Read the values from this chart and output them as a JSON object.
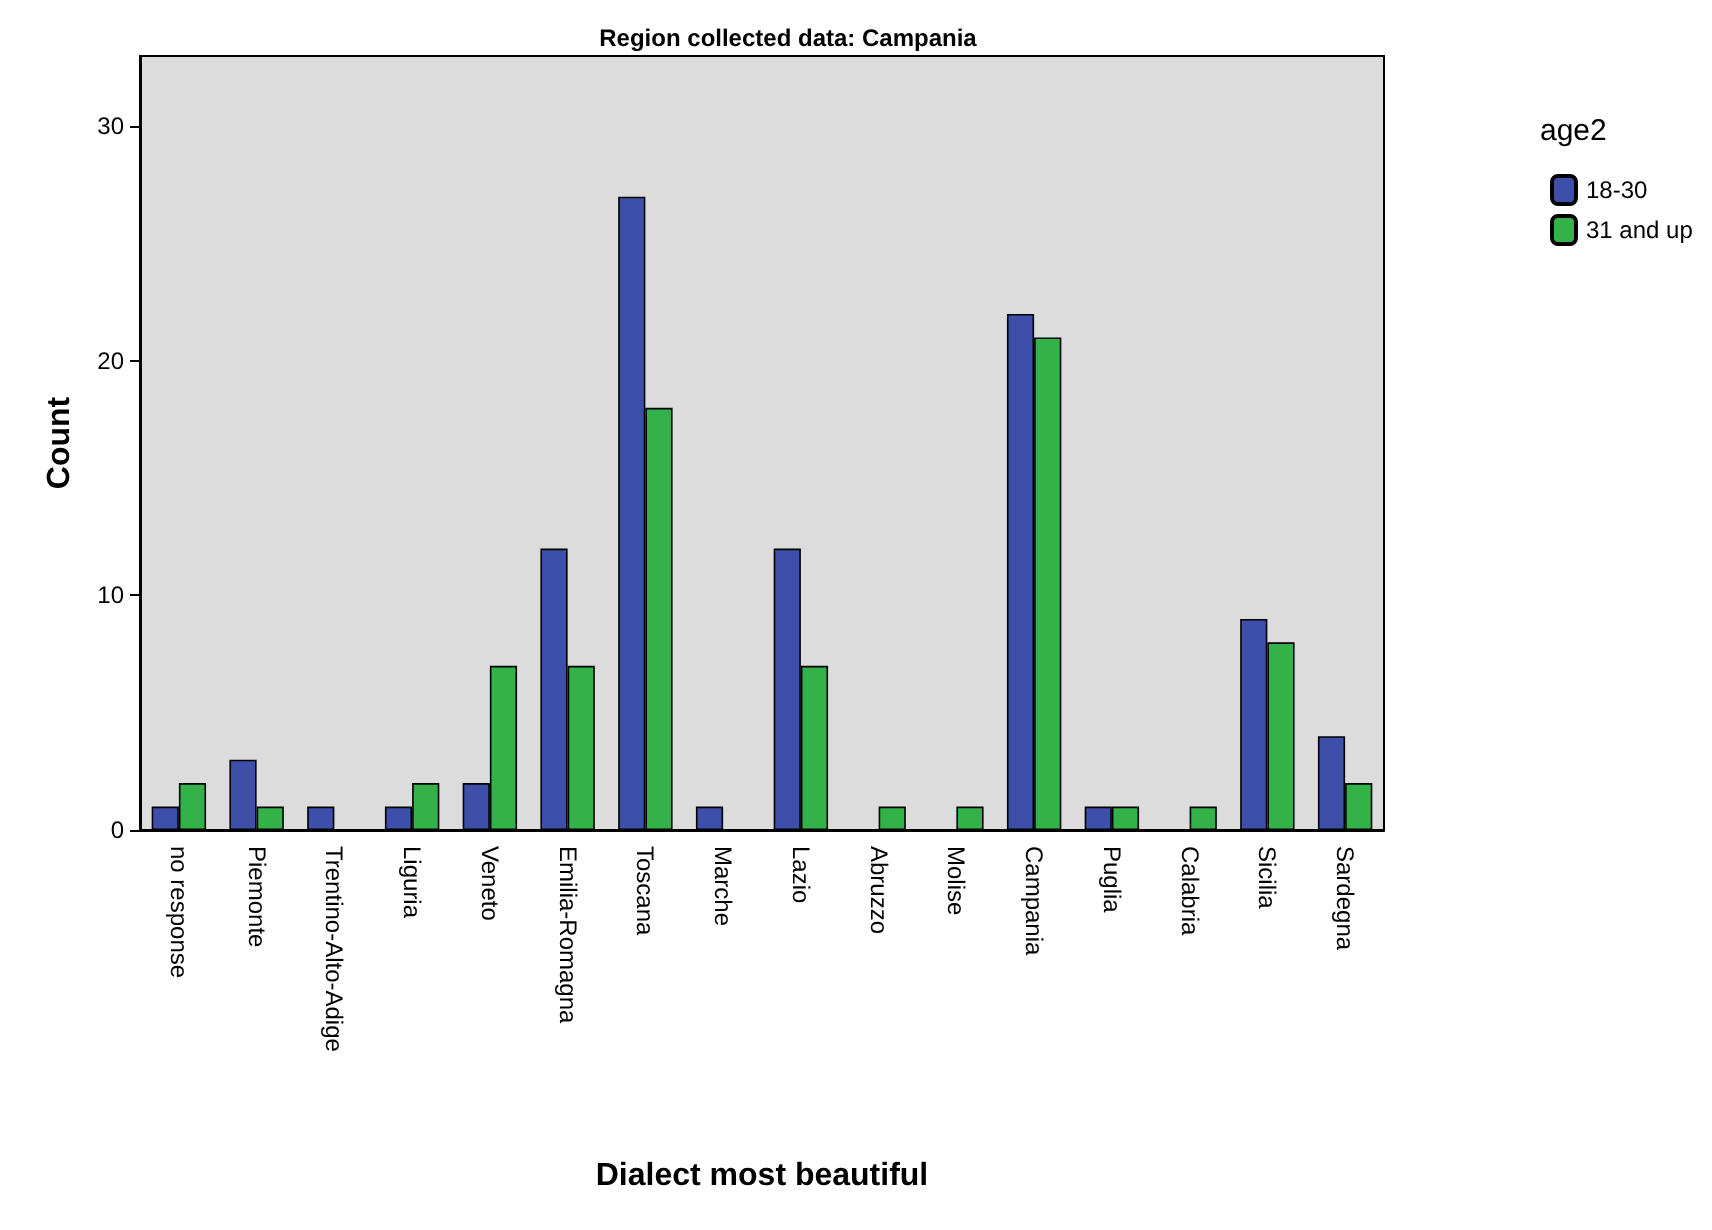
{
  "chart_data": {
    "type": "bar",
    "title": "Region collected data: Campania",
    "xlabel": "Dialect most beautiful",
    "ylabel": "Count",
    "legend_title": "age2",
    "categories": [
      "no response",
      "Piemonte",
      "Trentino-Alto-Adige",
      "Liguria",
      "Veneto",
      "Emilia-Romagna",
      "Toscana",
      "Marche",
      "Lazio",
      "Abruzzo",
      "Molise",
      "Campania",
      "Puglia",
      "Calabria",
      "Sicilia",
      "Sardegna"
    ],
    "series": [
      {
        "name": "18-30",
        "color": "#3d4fa8",
        "values": [
          1,
          3,
          1,
          1,
          2,
          12,
          27,
          1,
          12,
          0,
          0,
          22,
          1,
          0,
          9,
          4
        ]
      },
      {
        "name": "31 and up",
        "color": "#33b249",
        "values": [
          2,
          1,
          0,
          2,
          7,
          7,
          18,
          0,
          7,
          1,
          1,
          21,
          1,
          1,
          8,
          2
        ]
      }
    ],
    "ylim": [
      0,
      33
    ],
    "yticks": [
      0,
      10,
      20,
      30
    ],
    "grid": false,
    "legend": "top right"
  }
}
